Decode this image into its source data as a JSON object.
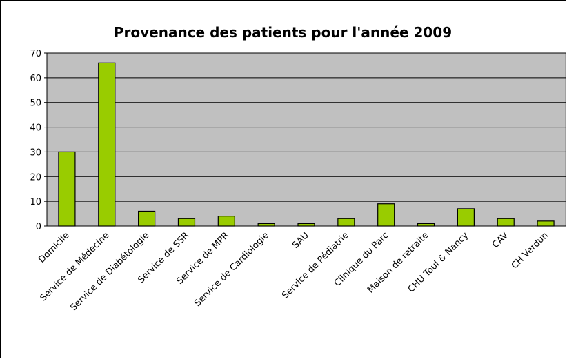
{
  "chart_data": {
    "type": "bar",
    "title": "Provenance des patients pour l'année 2009",
    "categories": [
      "Domicile",
      "Service de Médecine",
      "Service de Diabétologie",
      "Service de SSR",
      "Service de MPR",
      "Service de Cardiologie",
      "SAU",
      "Service de Pédiatrie",
      "Clinique du Parc",
      "Maison de retraite",
      "CHU Toul & Nancy",
      "CAV",
      "CH Verdun"
    ],
    "values": [
      30,
      66,
      6,
      3,
      4,
      1,
      1,
      3,
      9,
      1,
      7,
      3,
      2
    ],
    "color": "#99cc00",
    "ylim": [
      0,
      70
    ],
    "yticks": [
      0,
      10,
      20,
      30,
      40,
      50,
      60,
      70
    ],
    "grid": true
  }
}
